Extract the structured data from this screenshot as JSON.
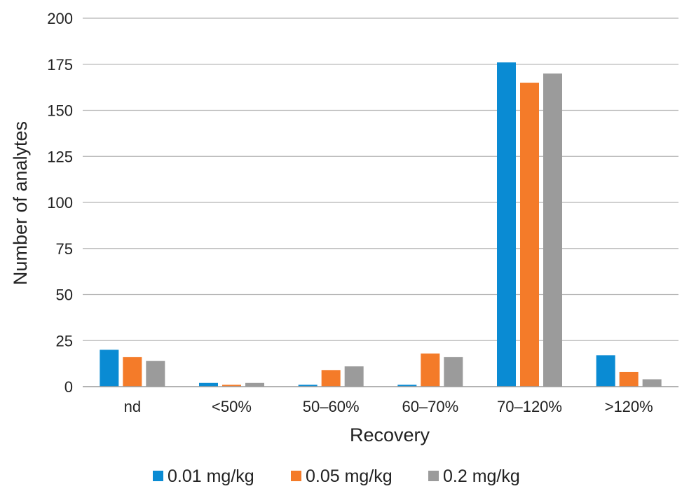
{
  "chart_data": {
    "type": "bar",
    "title": "",
    "xlabel": "Recovery",
    "ylabel": "Number of analytes",
    "categories": [
      "nd",
      "<50%",
      "50–60%",
      "60–70%",
      "70–120%",
      ">120%"
    ],
    "ylim": [
      0,
      200
    ],
    "yticks": [
      0,
      25,
      50,
      75,
      100,
      125,
      150,
      175,
      200
    ],
    "grid": true,
    "legend_position": "bottom",
    "series": [
      {
        "name": "0.01 mg/kg",
        "color": "#0a8bd3",
        "values": [
          20,
          2,
          1,
          1,
          176,
          17
        ]
      },
      {
        "name": "0.05 mg/kg",
        "color": "#f47b29",
        "values": [
          16,
          1,
          9,
          18,
          165,
          8
        ]
      },
      {
        "name": "0.2 mg/kg",
        "color": "#9b9b9b",
        "values": [
          14,
          2,
          11,
          16,
          170,
          4
        ]
      }
    ]
  }
}
